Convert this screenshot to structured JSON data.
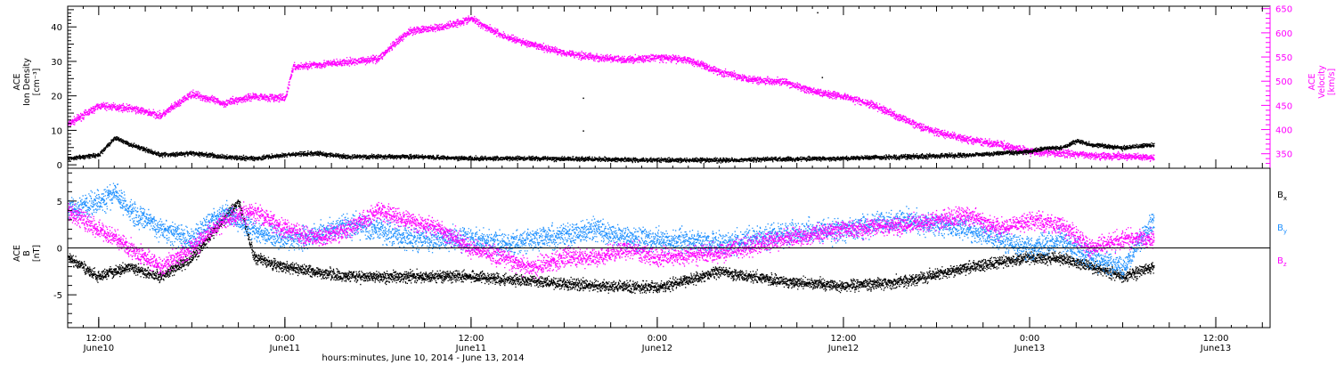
{
  "figure": {
    "xlabel": "hours:minutes, June 10, 2014 - June 13, 2014",
    "time_ticks": [
      {
        "t": 0,
        "time": "12:00",
        "date": "June10"
      },
      {
        "t": 12,
        "time": "0:00",
        "date": "June11"
      },
      {
        "t": 24,
        "time": "12:00",
        "date": "June11"
      },
      {
        "t": 36,
        "time": "0:00",
        "date": "June12"
      },
      {
        "t": 48,
        "time": "12:00",
        "date": "June12"
      },
      {
        "t": 60,
        "time": "0:00",
        "date": "June13"
      },
      {
        "t": 72,
        "time": "12:00",
        "date": "June13"
      }
    ],
    "xlim_hours": [
      -2,
      75.5
    ]
  },
  "chart_data": [
    {
      "type": "scatter",
      "title": "",
      "ylabel_left": [
        "ACE",
        "Ion Density",
        "[cm⁻³]"
      ],
      "ylabel_right": [
        "ACE",
        "Velocity",
        "[km/s]"
      ],
      "ylim_left": [
        -1,
        46
      ],
      "yticks_left": [
        0,
        10,
        20,
        30,
        40
      ],
      "ylim_right": [
        320,
        655
      ],
      "yticks_right": [
        350,
        400,
        450,
        500,
        550,
        600,
        650
      ],
      "x_unit": "hours from June 10 12:00",
      "series": [
        {
          "axis": "right",
          "color": "#ff00ff",
          "x": [
            -2,
            0,
            2,
            4,
            6,
            8,
            10,
            12,
            12.5,
            14,
            16,
            18,
            19.5,
            20,
            22,
            24,
            26,
            28,
            30,
            32,
            34,
            36,
            38,
            40,
            42,
            44,
            46,
            48,
            50,
            52,
            54,
            56,
            58,
            60,
            62,
            64,
            66,
            68
          ],
          "y": [
            412,
            450,
            445,
            430,
            475,
            455,
            470,
            465,
            530,
            535,
            540,
            548,
            590,
            605,
            612,
            630,
            595,
            575,
            560,
            550,
            545,
            550,
            545,
            520,
            505,
            500,
            480,
            470,
            450,
            420,
            395,
            380,
            370,
            355,
            352,
            348,
            345,
            344
          ]
        },
        {
          "axis": "left",
          "color": "#000000",
          "x": [
            -2,
            0,
            1,
            2,
            4,
            6,
            8,
            10,
            12,
            14,
            16,
            18,
            20,
            24,
            28,
            32,
            36,
            40,
            44,
            48,
            52,
            56,
            58,
            60,
            61,
            62,
            63,
            64,
            66,
            68
          ],
          "y": [
            2,
            3,
            8,
            6,
            3,
            3.5,
            2.5,
            2,
            3,
            3.5,
            2.5,
            2.5,
            2.5,
            2,
            2,
            1.8,
            1.5,
            1.5,
            1.8,
            2,
            2.5,
            3,
            3.5,
            4,
            5,
            5,
            7,
            6,
            5,
            6
          ]
        }
      ],
      "annotations": [
        {
          "x": 46.3,
          "y": 44.3,
          "axis": "left"
        },
        {
          "x": 46.6,
          "y": 25.5,
          "axis": "left"
        },
        {
          "x": 31.2,
          "y": 19.5,
          "axis": "left"
        },
        {
          "x": 31.2,
          "y": 10,
          "axis": "left"
        }
      ]
    },
    {
      "type": "scatter",
      "title": "",
      "ylabel_left": [
        "ACE",
        "B",
        "[nT]"
      ],
      "ylim": [
        -8.5,
        8.5
      ],
      "yticks": [
        -5,
        0,
        5
      ],
      "zero_line": true,
      "x_unit": "hours from June 10 12:00",
      "legend": [
        {
          "label": "B",
          "sub": "x",
          "color": "#000000"
        },
        {
          "label": "B",
          "sub": "y",
          "color": "#1e90ff"
        },
        {
          "label": "B",
          "sub": "z",
          "color": "#ff00ff"
        }
      ],
      "legend_position": "right",
      "series": [
        {
          "name": "Bx",
          "color": "#000000",
          "spread": 1.6,
          "x": [
            -2,
            0,
            2,
            4,
            6,
            8,
            9,
            10,
            12,
            16,
            20,
            24,
            28,
            32,
            36,
            40,
            44,
            48,
            52,
            56,
            58,
            60,
            62,
            64,
            66,
            68
          ],
          "y": [
            -1,
            -3,
            -2,
            -3,
            -1,
            3,
            5,
            -1,
            -2,
            -3,
            -3,
            -3,
            -3.5,
            -4,
            -4.2,
            -2.5,
            -3.5,
            -4,
            -3.5,
            -2,
            -1.5,
            -1,
            -1,
            -2,
            -3,
            -2
          ]
        },
        {
          "name": "By",
          "color": "#1e90ff",
          "spread": 3.2,
          "x": [
            -2,
            0,
            1,
            2,
            4,
            6,
            8,
            10,
            12,
            14,
            16,
            18,
            20,
            22,
            24,
            26,
            28,
            30,
            32,
            34,
            36,
            40,
            44,
            48,
            52,
            56,
            58,
            60,
            62,
            64,
            66,
            68
          ],
          "y": [
            4,
            5,
            6,
            4,
            2,
            1,
            4,
            2,
            1,
            1.5,
            2.5,
            2,
            1,
            1,
            1,
            0.5,
            1,
            1.5,
            2,
            1,
            1,
            0.5,
            1.5,
            2,
            3,
            2,
            1,
            0,
            1,
            -1,
            -2,
            3
          ]
        },
        {
          "name": "Bz",
          "color": "#ff00ff",
          "spread": 2.6,
          "x": [
            -2,
            0,
            2,
            4,
            6,
            8,
            10,
            12,
            14,
            16,
            18,
            20,
            22,
            24,
            26,
            28,
            30,
            32,
            34,
            36,
            40,
            44,
            48,
            52,
            56,
            58,
            60,
            62,
            64,
            66,
            68
          ],
          "y": [
            4,
            2,
            0,
            -2,
            0,
            3,
            4,
            2,
            1,
            2,
            4,
            3,
            2,
            0,
            -1,
            -2,
            -1,
            -1,
            0,
            -1,
            -0.5,
            1,
            2,
            2.5,
            3.5,
            2,
            3,
            2.5,
            0,
            1,
            1
          ]
        }
      ]
    }
  ]
}
